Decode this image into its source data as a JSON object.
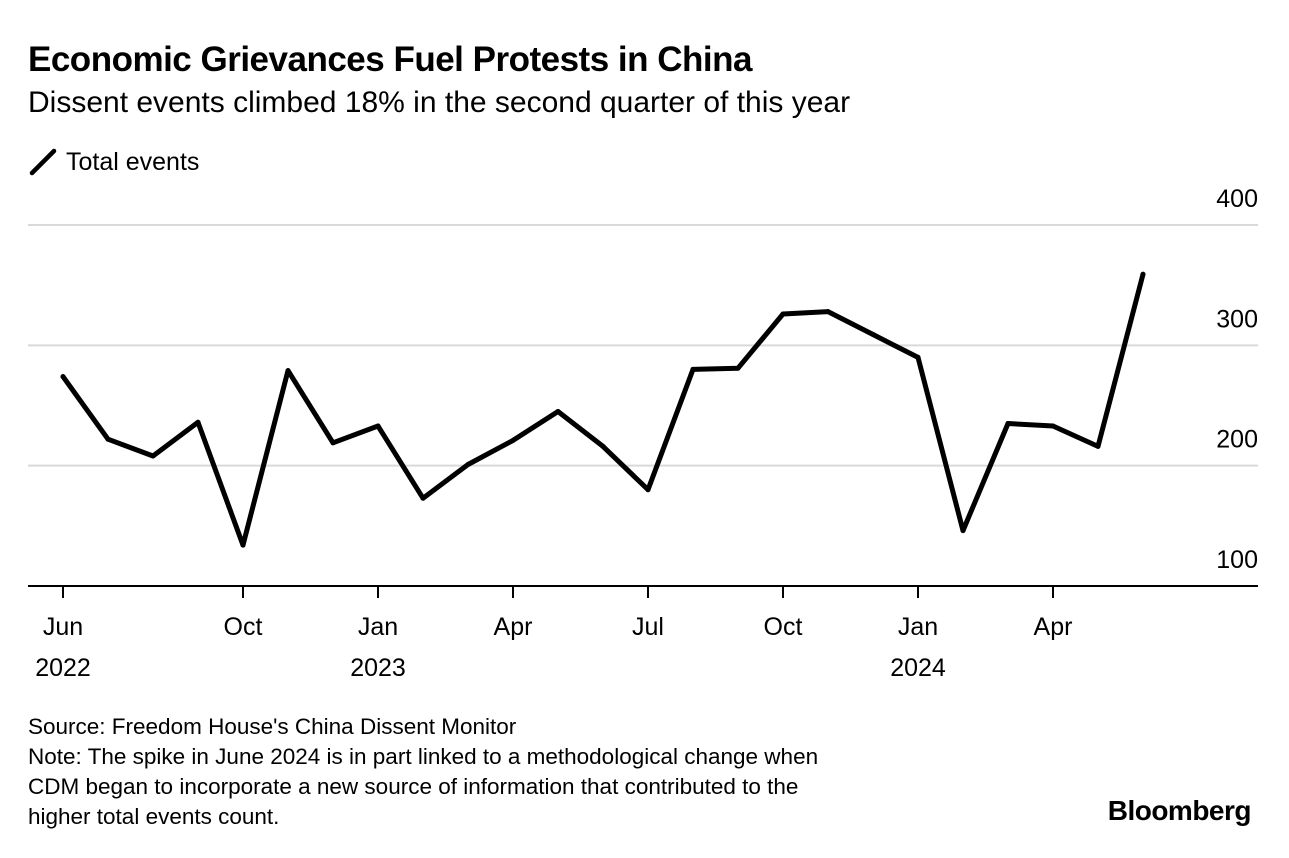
{
  "chart_data": {
    "type": "line",
    "title": "Economic Grievances Fuel Protests in China",
    "subtitle": "Dissent events climbed 18% in the second quarter of this year",
    "series": [
      {
        "name": "Total events",
        "color": "#000000",
        "x": [
          "2022-06",
          "2022-07",
          "2022-08",
          "2022-09",
          "2022-10",
          "2022-11",
          "2022-12",
          "2023-01",
          "2023-02",
          "2023-03",
          "2023-04",
          "2023-05",
          "2023-06",
          "2023-07",
          "2023-08",
          "2023-09",
          "2023-10",
          "2023-11",
          "2023-12",
          "2024-01",
          "2024-02",
          "2024-03",
          "2024-04",
          "2024-05",
          "2024-06"
        ],
        "values": [
          274,
          222,
          208,
          236,
          134,
          279,
          219,
          233,
          173,
          201,
          221,
          245,
          216,
          180,
          280,
          281,
          326,
          328,
          309,
          290,
          146,
          235,
          233,
          216,
          359
        ]
      }
    ],
    "x_tick_labels": [
      {
        "month": "Jun",
        "year": "2022",
        "x": "2022-06"
      },
      {
        "month": "Oct",
        "year": "",
        "x": "2022-10"
      },
      {
        "month": "Jan",
        "year": "2023",
        "x": "2023-01"
      },
      {
        "month": "Apr",
        "year": "",
        "x": "2023-04"
      },
      {
        "month": "Jul",
        "year": "",
        "x": "2023-07"
      },
      {
        "month": "Oct",
        "year": "",
        "x": "2023-10"
      },
      {
        "month": "Jan",
        "year": "2024",
        "x": "2024-01"
      },
      {
        "month": "Apr",
        "year": "",
        "x": "2024-04"
      }
    ],
    "y_ticks": [
      100,
      200,
      300,
      400
    ],
    "ylim": [
      100,
      400
    ],
    "grid": true,
    "legend_position": "top-left",
    "axis_side_y": "right"
  },
  "footer": {
    "source": "Source: Freedom House's China Dissent Monitor",
    "note_lines": [
      "Note: The spike in June 2024 is in part linked to a methodological change when",
      "CDM began to incorporate a new source of information that contributed to the",
      "higher total events count."
    ]
  },
  "brand": "Bloomberg"
}
